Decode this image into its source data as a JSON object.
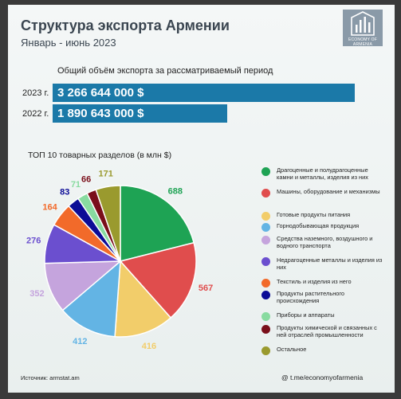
{
  "header": {
    "title": "Структура экспорта Армении",
    "subtitle": "Январь - июнь 2023",
    "logo_text": "ECONOMY OF ARMENIA"
  },
  "total_export": {
    "title": "Общий объём экспорта за рассматриваемый период",
    "rows": [
      {
        "year_label": "2023 г.",
        "value_text": "3 266 644 000  $",
        "value": 3266644000
      },
      {
        "year_label": "2022 г.",
        "value_text": "1 890 643 000  $",
        "value": 1890643000
      }
    ]
  },
  "top_title": "ТОП 10 товарных разделов (в млн $)",
  "colors": {
    "bar": "#1b79a8",
    "slices": [
      "#1ea354",
      "#e04d4d",
      "#f2cd6a",
      "#63b4e4",
      "#c5a4dd",
      "#6b4fcf",
      "#f26a2a",
      "#0c0c96",
      "#88dba0",
      "#7a0f1a",
      "#9a9a2e"
    ]
  },
  "chart_data": {
    "type": "pie",
    "title": "ТОП 10 товарных разделов (в млн $)",
    "categories": [
      "Драгоценные и полудрагоценные камни и металлы, изделия из них",
      "Машины, оборудование и механизмы",
      "Готовые продукты питания",
      "Горнодобывающая продукция",
      "Средства наземного, воздушного и водного транспорта",
      "Недрагоценные металлы и изделия из них",
      "Текстиль и изделия из него",
      "Продукты растительного происхождения",
      "Приборы и аппараты",
      "Продукты химической и связанных с ней отраслей промышленности",
      "Остальное"
    ],
    "values": [
      688,
      567,
      416,
      412,
      352,
      276,
      164,
      83,
      71,
      66,
      171
    ],
    "legend_position": "right"
  },
  "footer": {
    "source": "Источник: armstat.am",
    "channel": "@ t.me/economyofarmenia"
  }
}
